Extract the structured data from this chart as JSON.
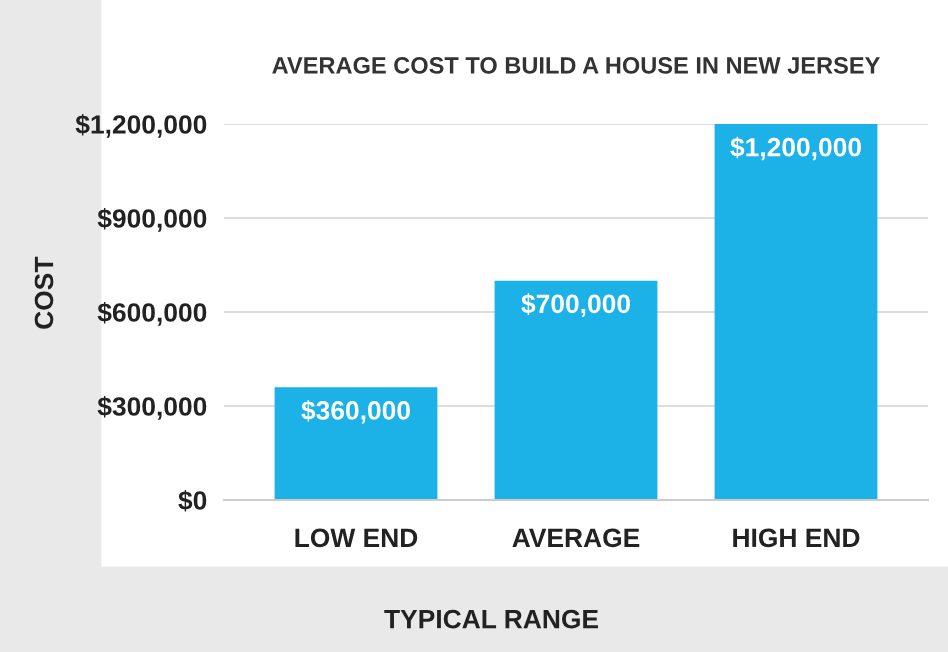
{
  "chart_data": {
    "type": "bar",
    "title": "AVERAGE COST TO BUILD A HOUSE IN NEW JERSEY",
    "xlabel": "TYPICAL RANGE",
    "ylabel": "COST",
    "categories": [
      "LOW END",
      "AVERAGE",
      "HIGH END"
    ],
    "values": [
      360000,
      700000,
      1200000
    ],
    "value_labels": [
      "$360,000",
      "$700,000",
      "$1,200,000"
    ],
    "color": "#1cb2e8",
    "ylim": [
      0,
      1200000
    ],
    "yticks": [
      {
        "value": 0,
        "label": "$0"
      },
      {
        "value": 300000,
        "label": "$300,000"
      },
      {
        "value": 600000,
        "label": "$600,000"
      },
      {
        "value": 900000,
        "label": "$900,000"
      },
      {
        "value": 1200000,
        "label": "$1,200,000"
      }
    ],
    "grid": "y"
  }
}
